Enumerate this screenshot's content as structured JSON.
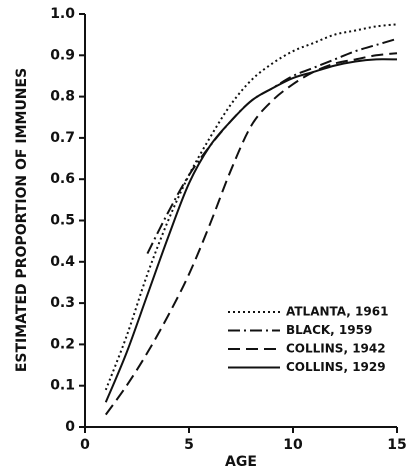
{
  "chart_data": {
    "type": "line",
    "xlabel": "AGE",
    "ylabel": "ESTIMATED PROPORTION OF IMMUNES",
    "x": [
      1,
      2,
      3,
      4,
      5,
      6,
      7,
      8,
      9,
      10,
      11,
      12,
      13,
      14,
      15
    ],
    "series": [
      {
        "name": "ATLANTA, 1961",
        "color": "#111111",
        "style": "dotted",
        "values": [
          0.09,
          0.22,
          0.37,
          0.5,
          0.61,
          0.7,
          0.78,
          0.84,
          0.88,
          0.91,
          0.93,
          0.95,
          0.96,
          0.97,
          0.975
        ]
      },
      {
        "name": "BLACK, 1959",
        "color": "#111111",
        "style": "dashdot",
        "values": [
          null,
          null,
          0.42,
          0.52,
          0.61,
          0.68,
          0.74,
          0.79,
          0.82,
          0.85,
          0.87,
          0.89,
          0.91,
          0.925,
          0.94
        ]
      },
      {
        "name": "COLLINS, 1942",
        "color": "#111111",
        "style": "dashed",
        "values": [
          0.03,
          0.1,
          0.18,
          0.27,
          0.37,
          0.49,
          0.62,
          0.73,
          0.79,
          0.83,
          0.86,
          0.88,
          0.89,
          0.9,
          0.905
        ]
      },
      {
        "name": "COLLINS, 1929",
        "color": "#111111",
        "style": "solid",
        "values": [
          0.06,
          0.18,
          0.32,
          0.46,
          0.59,
          0.68,
          0.74,
          0.79,
          0.82,
          0.845,
          0.86,
          0.875,
          0.885,
          0.89,
          0.89
        ]
      }
    ],
    "xlim": [
      0,
      15
    ],
    "xticks": [
      0,
      5,
      10,
      15
    ],
    "ylim": [
      0,
      1
    ],
    "yticks": [
      0,
      0.1,
      0.2,
      0.3,
      0.4,
      0.5,
      0.6,
      0.7,
      0.8,
      0.9,
      {
        "value": 1,
        "label": "1.0"
      }
    ],
    "grid": false,
    "legend": "lower right"
  }
}
